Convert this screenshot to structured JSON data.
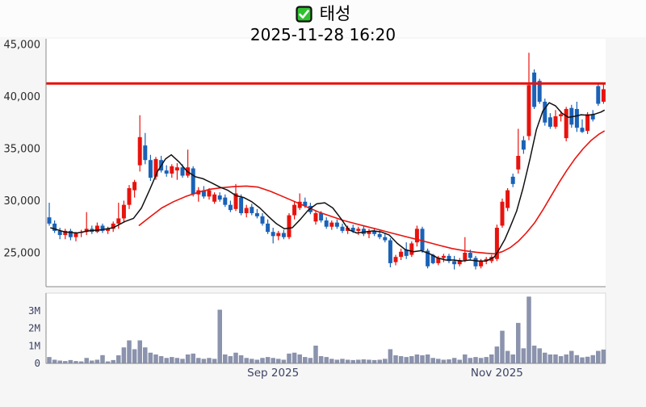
{
  "header": {
    "title": "태성",
    "datetime": "2025-11-28 16:20",
    "checkbox_color": "#2fc12f"
  },
  "colors": {
    "up": "#e8130d",
    "down": "#1a62b7",
    "ma_fast": "#111111",
    "ma_slow": "#e8130d",
    "hline": "#e8130d",
    "volume_bar": "#8b93ad",
    "volume_bar_edge": "#7b84a0",
    "price_label": "#2b2b2b",
    "volume_label": "#3d4466",
    "spine": "#8a8a8a",
    "panel_border": "#d9d9d9",
    "plot_bg": "#ffffff",
    "figure_bg": "#f6f6f6"
  },
  "chart_data": {
    "type": "candlestick_with_volume",
    "title": "태성",
    "subtitle": "2025-11-28 16:20",
    "price_axis": {
      "ticks": [
        {
          "value": 45000,
          "label": "45,000"
        },
        {
          "value": 40000,
          "label": "40,000"
        },
        {
          "value": 35000,
          "label": "35,000"
        },
        {
          "value": 30000,
          "label": "30,000"
        },
        {
          "value": 25000,
          "label": "25,000"
        }
      ],
      "ylim": [
        21700,
        45400
      ],
      "grid": false
    },
    "hline_price": 41250,
    "x_ticks": [
      {
        "index": 42,
        "label": "Sep 2025"
      },
      {
        "index": 84,
        "label": "Nov 2025"
      }
    ],
    "volume_axis": {
      "ticks": [
        {
          "value": 3,
          "label": "3M"
        },
        {
          "value": 2,
          "label": "2M"
        },
        {
          "value": 1,
          "label": "1M"
        },
        {
          "value": 0,
          "label": "0"
        }
      ],
      "max_millions": 4.0
    },
    "candles_format": [
      "open",
      "high",
      "low",
      "close",
      "volume_millions"
    ],
    "candles": [
      [
        28400,
        29800,
        27600,
        27800,
        0.35
      ],
      [
        27800,
        28100,
        26900,
        27100,
        0.2
      ],
      [
        27100,
        27400,
        26300,
        26700,
        0.15
      ],
      [
        26700,
        27300,
        26300,
        27100,
        0.12
      ],
      [
        27100,
        27300,
        26200,
        26500,
        0.18
      ],
      [
        26500,
        27000,
        26100,
        26900,
        0.12
      ],
      [
        26900,
        27200,
        26500,
        27000,
        0.1
      ],
      [
        27000,
        28900,
        26700,
        27300,
        0.3
      ],
      [
        27300,
        27600,
        26800,
        27000,
        0.15
      ],
      [
        27000,
        27900,
        26900,
        27600,
        0.2
      ],
      [
        27600,
        27800,
        26900,
        27100,
        0.46
      ],
      [
        27100,
        27500,
        26800,
        27300,
        0.1
      ],
      [
        27300,
        28000,
        27000,
        27800,
        0.18
      ],
      [
        27800,
        29800,
        27300,
        28300,
        0.45
      ],
      [
        28300,
        30000,
        27900,
        29600,
        0.9
      ],
      [
        29600,
        31500,
        29200,
        31200,
        1.3
      ],
      [
        31000,
        32000,
        30300,
        31800,
        0.8
      ],
      [
        33400,
        38200,
        32800,
        36100,
        1.3
      ],
      [
        35300,
        36500,
        33500,
        33900,
        0.9
      ],
      [
        33900,
        34400,
        31900,
        32200,
        0.6
      ],
      [
        32300,
        34200,
        32000,
        34000,
        0.5
      ],
      [
        33900,
        34300,
        32700,
        32900,
        0.4
      ],
      [
        32900,
        33400,
        32300,
        32600,
        0.3
      ],
      [
        32600,
        33500,
        32200,
        33300,
        0.35
      ],
      [
        32900,
        33600,
        32000,
        33200,
        0.3
      ],
      [
        33200,
        33500,
        32200,
        32400,
        0.25
      ],
      [
        32400,
        34900,
        32200,
        33200,
        0.5
      ],
      [
        33100,
        33300,
        30400,
        30600,
        0.55
      ],
      [
        30600,
        31300,
        29900,
        31000,
        0.3
      ],
      [
        31000,
        31400,
        30200,
        30400,
        0.25
      ],
      [
        30400,
        31200,
        30100,
        31000,
        0.3
      ],
      [
        29900,
        30800,
        29700,
        30600,
        0.25
      ],
      [
        30500,
        30800,
        29900,
        30100,
        3.05
      ],
      [
        30300,
        30600,
        29400,
        29600,
        0.5
      ],
      [
        29600,
        30000,
        28900,
        29100,
        0.4
      ],
      [
        29200,
        31600,
        29000,
        30700,
        0.6
      ],
      [
        30300,
        30600,
        28600,
        28800,
        0.45
      ],
      [
        28800,
        29600,
        28400,
        29300,
        0.3
      ],
      [
        29400,
        29700,
        28600,
        28800,
        0.25
      ],
      [
        28800,
        29200,
        28300,
        28500,
        0.2
      ],
      [
        28500,
        28800,
        27600,
        27800,
        0.3
      ],
      [
        27800,
        28200,
        26800,
        27000,
        0.35
      ],
      [
        27000,
        27400,
        25900,
        26600,
        0.3
      ],
      [
        26600,
        27100,
        26200,
        26900,
        0.25
      ],
      [
        26900,
        27200,
        26300,
        26500,
        0.2
      ],
      [
        26500,
        28800,
        26300,
        28600,
        0.55
      ],
      [
        28600,
        29900,
        28200,
        29600,
        0.6
      ],
      [
        29300,
        30700,
        29100,
        29900,
        0.5
      ],
      [
        29900,
        30300,
        29300,
        29500,
        0.35
      ],
      [
        29500,
        29800,
        28700,
        28900,
        0.3
      ],
      [
        28000,
        29000,
        27700,
        28800,
        1.0
      ],
      [
        28800,
        29000,
        27900,
        28100,
        0.4
      ],
      [
        28100,
        28400,
        27300,
        27500,
        0.35
      ],
      [
        27500,
        28100,
        27200,
        27900,
        0.25
      ],
      [
        27900,
        28200,
        27300,
        27500,
        0.2
      ],
      [
        27500,
        27800,
        26900,
        27100,
        0.25
      ],
      [
        27100,
        27600,
        26800,
        27400,
        0.2
      ],
      [
        27400,
        27700,
        26900,
        27100,
        0.18
      ],
      [
        27100,
        27500,
        26700,
        27300,
        0.2
      ],
      [
        27300,
        27600,
        26600,
        26800,
        0.22
      ],
      [
        26800,
        27300,
        26400,
        27100,
        0.2
      ],
      [
        27100,
        27400,
        26600,
        26800,
        0.18
      ],
      [
        26800,
        27200,
        26300,
        26500,
        0.2
      ],
      [
        26500,
        26900,
        26000,
        26200,
        0.25
      ],
      [
        26200,
        26400,
        23600,
        24000,
        0.8
      ],
      [
        24100,
        24800,
        23800,
        24600,
        0.45
      ],
      [
        24600,
        25400,
        24300,
        25100,
        0.4
      ],
      [
        25300,
        26000,
        24400,
        24700,
        0.35
      ],
      [
        24800,
        26100,
        24600,
        25900,
        0.4
      ],
      [
        26000,
        27600,
        25600,
        27300,
        0.5
      ],
      [
        27300,
        27500,
        25000,
        25200,
        0.45
      ],
      [
        25200,
        25400,
        23500,
        23700,
        0.5
      ],
      [
        24800,
        24900,
        23900,
        24000,
        0.3
      ],
      [
        24000,
        24700,
        23800,
        24500,
        0.25
      ],
      [
        24500,
        24900,
        24100,
        24700,
        0.2
      ],
      [
        24700,
        24900,
        24000,
        24200,
        0.22
      ],
      [
        24200,
        24700,
        23400,
        23900,
        0.3
      ],
      [
        23900,
        24500,
        23700,
        24300,
        0.2
      ],
      [
        24300,
        26500,
        24100,
        25000,
        0.5
      ],
      [
        25000,
        25300,
        24300,
        24500,
        0.3
      ],
      [
        24500,
        24700,
        23400,
        23700,
        0.35
      ],
      [
        23700,
        24400,
        23500,
        24200,
        0.3
      ],
      [
        24200,
        24600,
        23900,
        24400,
        0.35
      ],
      [
        24200,
        24800,
        24000,
        24600,
        0.5
      ],
      [
        24400,
        27700,
        24200,
        27400,
        0.95
      ],
      [
        27600,
        30200,
        27400,
        29900,
        1.85
      ],
      [
        29300,
        31200,
        29000,
        31000,
        0.7
      ],
      [
        32300,
        32600,
        31300,
        31600,
        0.5
      ],
      [
        33000,
        36900,
        32600,
        34300,
        2.3
      ],
      [
        35800,
        36200,
        34500,
        34900,
        0.85
      ],
      [
        36200,
        44200,
        35800,
        41100,
        3.8
      ],
      [
        42300,
        42600,
        38800,
        39000,
        1.0
      ],
      [
        41500,
        41700,
        39300,
        39500,
        0.85
      ],
      [
        39500,
        39800,
        37200,
        37500,
        0.6
      ],
      [
        38000,
        38400,
        36900,
        37100,
        0.5
      ],
      [
        37100,
        38700,
        36900,
        38100,
        0.5
      ],
      [
        38100,
        38600,
        37600,
        38300,
        0.4
      ],
      [
        36000,
        39000,
        35700,
        38800,
        0.5
      ],
      [
        38900,
        39200,
        37000,
        37300,
        0.7
      ],
      [
        38800,
        39500,
        36600,
        37000,
        0.46
      ],
      [
        37000,
        37800,
        36500,
        36600,
        0.33
      ],
      [
        36700,
        38500,
        36400,
        38300,
        0.37
      ],
      [
        38300,
        38700,
        37600,
        37800,
        0.46
      ],
      [
        41000,
        41300,
        39100,
        39300,
        0.7
      ],
      [
        39500,
        41300,
        39300,
        40700,
        0.78
      ]
    ],
    "ma_fast_points": [
      [
        0.2,
        27400
      ],
      [
        2.9,
        27000
      ],
      [
        5.2,
        26900
      ],
      [
        7.4,
        27100
      ],
      [
        9.7,
        27200
      ],
      [
        12,
        27400
      ],
      [
        14.2,
        28000
      ],
      [
        15.8,
        28300
      ],
      [
        17.3,
        29300
      ],
      [
        18.8,
        31000
      ],
      [
        20.3,
        32800
      ],
      [
        21.8,
        34000
      ],
      [
        22.9,
        34400
      ],
      [
        24.4,
        33700
      ],
      [
        25.9,
        32800
      ],
      [
        27.4,
        32300
      ],
      [
        28.9,
        32100
      ],
      [
        30.5,
        31700
      ],
      [
        32,
        31300
      ],
      [
        33.5,
        31000
      ],
      [
        35,
        30500
      ],
      [
        36.5,
        30300
      ],
      [
        38,
        29900
      ],
      [
        39.5,
        29300
      ],
      [
        41.1,
        28500
      ],
      [
        42.6,
        27800
      ],
      [
        44.1,
        27300
      ],
      [
        45.6,
        27400
      ],
      [
        47.1,
        28200
      ],
      [
        48.6,
        29100
      ],
      [
        50.2,
        29700
      ],
      [
        51.7,
        29800
      ],
      [
        53.2,
        29300
      ],
      [
        54.7,
        28300
      ],
      [
        56.2,
        27200
      ],
      [
        57.7,
        26900
      ],
      [
        59.2,
        27000
      ],
      [
        60.8,
        27100
      ],
      [
        62.3,
        27000
      ],
      [
        63.8,
        26700
      ],
      [
        65.3,
        25900
      ],
      [
        66.8,
        25300
      ],
      [
        68.3,
        25100
      ],
      [
        69.8,
        25200
      ],
      [
        71.4,
        24900
      ],
      [
        72.9,
        24500
      ],
      [
        74.4,
        24300
      ],
      [
        75.9,
        24300
      ],
      [
        77.4,
        24200
      ],
      [
        78.9,
        24300
      ],
      [
        80.5,
        24200
      ],
      [
        82,
        24200
      ],
      [
        83.5,
        24600
      ],
      [
        84.4,
        25300
      ],
      [
        85.5,
        26300
      ],
      [
        86.5,
        27500
      ],
      [
        87.7,
        29000
      ],
      [
        88.9,
        31200
      ],
      [
        90.2,
        34000
      ],
      [
        91.4,
        36800
      ],
      [
        92.6,
        38600
      ],
      [
        93.8,
        39400
      ],
      [
        95,
        39100
      ],
      [
        96.2,
        38400
      ],
      [
        97.4,
        38000
      ],
      [
        98.6,
        38100
      ],
      [
        99.8,
        38250
      ],
      [
        101.1,
        38200
      ],
      [
        102.3,
        38300
      ],
      [
        103.5,
        38500
      ],
      [
        104.2,
        38700
      ]
    ],
    "ma_slow_points": [
      [
        16.8,
        27600
      ],
      [
        18.8,
        28400
      ],
      [
        21.1,
        29300
      ],
      [
        23.3,
        29900
      ],
      [
        25.6,
        30400
      ],
      [
        27.9,
        30800
      ],
      [
        30.2,
        31100
      ],
      [
        32.4,
        31250
      ],
      [
        34.7,
        31350
      ],
      [
        37,
        31400
      ],
      [
        39.2,
        31300
      ],
      [
        41.5,
        30900
      ],
      [
        43.8,
        30400
      ],
      [
        46.1,
        29900
      ],
      [
        48.3,
        29400
      ],
      [
        50.6,
        28900
      ],
      [
        52.9,
        28500
      ],
      [
        55.2,
        28100
      ],
      [
        57.4,
        27800
      ],
      [
        59.7,
        27500
      ],
      [
        62,
        27200
      ],
      [
        64.2,
        26900
      ],
      [
        66.5,
        26600
      ],
      [
        68.8,
        26300
      ],
      [
        71.1,
        26000
      ],
      [
        73.3,
        25700
      ],
      [
        75.6,
        25400
      ],
      [
        77.9,
        25200
      ],
      [
        80.2,
        25050
      ],
      [
        82,
        24950
      ],
      [
        83.5,
        24900
      ],
      [
        85,
        25100
      ],
      [
        86.5,
        25500
      ],
      [
        88,
        26100
      ],
      [
        89.5,
        26900
      ],
      [
        91.1,
        27900
      ],
      [
        92.6,
        29100
      ],
      [
        94.1,
        30400
      ],
      [
        95.6,
        31700
      ],
      [
        97.1,
        32900
      ],
      [
        98.6,
        34000
      ],
      [
        100.2,
        35000
      ],
      [
        101.7,
        35800
      ],
      [
        103.2,
        36400
      ],
      [
        104.2,
        36700
      ]
    ]
  }
}
